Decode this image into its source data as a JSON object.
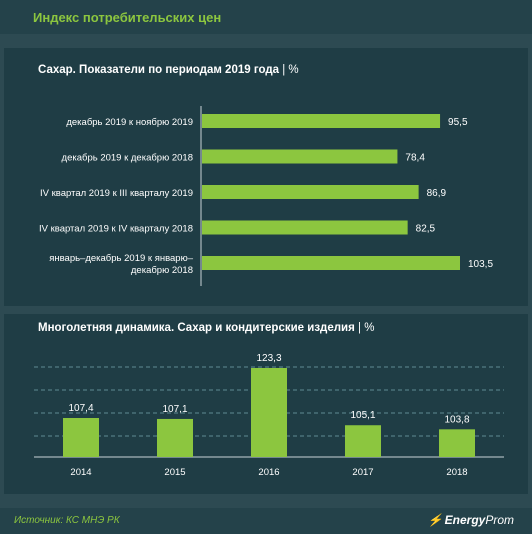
{
  "header": {
    "title": "Индекс потребительских цен"
  },
  "icons": {
    "brand": "lightning-logo-icon"
  },
  "colors": {
    "bar": "#8cc63f",
    "background": "#2d4a52",
    "panel": "#1f3d45",
    "accent": "#8cc63f"
  },
  "chart1": {
    "title": "Сахар. Показатели по периодам 2019 года",
    "unit": "| %"
  },
  "chart2": {
    "title": "Многолетняя динамика.  Сахар  и кондитерские  изделия",
    "unit": "| %"
  },
  "footer": {
    "source": "Источник: КС МНЭ РК",
    "brand_bold": "Energy",
    "brand_light": "Prom"
  },
  "chart_data": [
    {
      "type": "bar",
      "orientation": "horizontal",
      "title": "Сахар. Показатели по периодам 2019 года | %",
      "categories": [
        [
          "декабрь 2019 к ноябрю 2019"
        ],
        [
          "декабрь 2019 к декабрю 2018"
        ],
        [
          "IV квартал 2019 к III кварталу 2019"
        ],
        [
          "IV квартал 2019 к IV кварталу 2018"
        ],
        [
          "январь–декабрь 2019 к январю–",
          "декабрю 2018"
        ]
      ],
      "values": [
        95.5,
        78.4,
        86.9,
        82.5,
        103.5
      ],
      "value_labels": [
        "95,5",
        "78,4",
        "86,9",
        "82,5",
        "103,5"
      ],
      "xlim": [
        0,
        103.5
      ]
    },
    {
      "type": "bar",
      "orientation": "vertical",
      "title": "Многолетняя динамика.  Сахар  и кондитерские  изделия | %",
      "categories": [
        "2014",
        "2015",
        "2016",
        "2017",
        "2018"
      ],
      "values": [
        107.4,
        107.1,
        123.3,
        105.1,
        103.8
      ],
      "value_labels": [
        "107,4",
        "107,1",
        "123,3",
        "105,1",
        "103,8"
      ],
      "grid": true
    }
  ]
}
